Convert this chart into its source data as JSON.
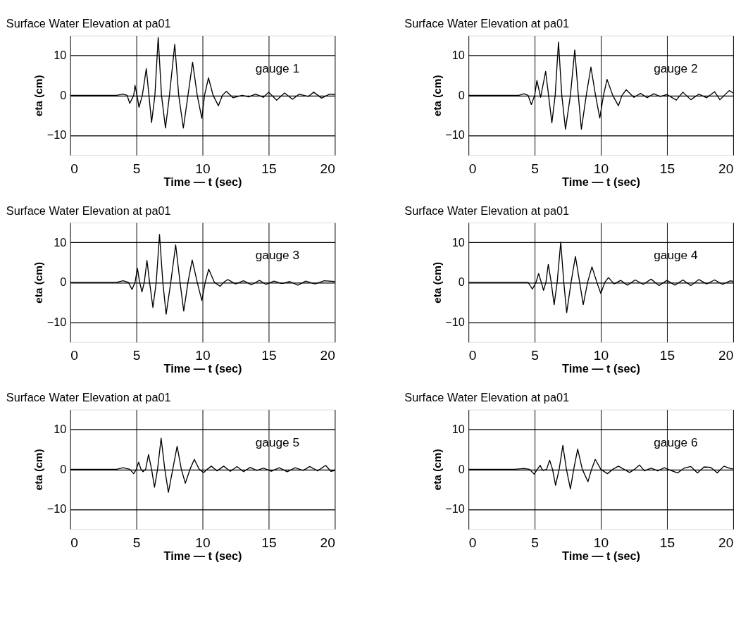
{
  "chart_data": [
    {
      "type": "line",
      "title": "Surface Water Elevation at pa01",
      "xlabel": "Time — t (sec)",
      "ylabel": "eta (cm)",
      "annotations": [
        "gauge   1"
      ],
      "color": "#000000",
      "xlim": [
        0,
        20
      ],
      "ylim": [
        -15,
        15
      ],
      "xticks": [
        0,
        5,
        10,
        15,
        20
      ],
      "yticks": [
        -10,
        0,
        10
      ],
      "grid": true,
      "x": [
        0,
        3.5,
        4.0,
        4.3,
        4.5,
        4.8,
        4.9,
        5.05,
        5.2,
        5.45,
        5.75,
        5.95,
        6.15,
        6.4,
        6.65,
        6.9,
        7.2,
        7.5,
        7.9,
        8.2,
        8.55,
        8.9,
        9.25,
        9.6,
        9.95,
        10.15,
        10.45,
        10.8,
        11.2,
        11.5,
        11.8,
        12.3,
        13,
        13.5,
        14,
        14.6,
        15,
        15.6,
        16.2,
        16.8,
        17.3,
        18,
        18.4,
        19.0,
        19.6,
        20
      ],
      "values": [
        0,
        0,
        0.3,
        0,
        -2,
        0,
        2.5,
        0,
        -3,
        0,
        6.7,
        0,
        -6.8,
        0,
        14.5,
        0,
        -8.2,
        0,
        12.8,
        0,
        -8.2,
        0,
        8.3,
        0,
        -5.8,
        0,
        4.4,
        0,
        -2.6,
        0,
        1.0,
        -0.6,
        0,
        -0.4,
        0.3,
        -0.5,
        0.8,
        -1.2,
        0.6,
        -1.0,
        0.3,
        -0.3,
        0.8,
        -0.7,
        0.3,
        0.2
      ]
    },
    {
      "type": "line",
      "title": "Surface Water Elevation at pa01",
      "xlabel": "Time — t (sec)",
      "ylabel": "eta (cm)",
      "annotations": [
        "gauge   2"
      ],
      "color": "#000000",
      "xlim": [
        0,
        20
      ],
      "ylim": [
        -15,
        15
      ],
      "xticks": [
        0,
        5,
        10,
        15,
        20
      ],
      "yticks": [
        -10,
        0,
        10
      ],
      "grid": true,
      "x": [
        0,
        3.8,
        4.2,
        4.5,
        4.75,
        5.0,
        5.17,
        5.45,
        5.83,
        6.05,
        6.3,
        6.55,
        6.8,
        7.05,
        7.33,
        7.7,
        8.03,
        8.3,
        8.53,
        8.9,
        9.25,
        9.6,
        9.92,
        10.2,
        10.47,
        10.9,
        11.33,
        11.6,
        11.92,
        12.5,
        13,
        13.5,
        14,
        14.5,
        15,
        15.7,
        16.2,
        16.8,
        17.4,
        18.0,
        18.6,
        19.0,
        19.7,
        20
      ],
      "values": [
        0,
        0,
        0.4,
        0,
        -2.3,
        0,
        3.7,
        -0.5,
        6,
        0,
        -6.9,
        0,
        13.4,
        0,
        -8.5,
        0,
        11.4,
        0,
        -8.5,
        0,
        7.1,
        0,
        -5.7,
        0,
        4,
        0,
        -2.6,
        0,
        1.4,
        -0.5,
        0.5,
        -0.6,
        0.4,
        -0.3,
        0.2,
        -1.2,
        0.8,
        -1.1,
        0.3,
        -0.6,
        0.9,
        -1.1,
        1.2,
        0.6
      ]
    },
    {
      "type": "line",
      "title": "Surface Water Elevation at pa01",
      "xlabel": "Time — t (sec)",
      "ylabel": "eta (cm)",
      "annotations": [
        "gauge   3"
      ],
      "color": "#000000",
      "xlim": [
        0,
        20
      ],
      "ylim": [
        -15,
        15
      ],
      "xticks": [
        0,
        5,
        10,
        15,
        20
      ],
      "yticks": [
        -10,
        0,
        10
      ],
      "grid": true,
      "x": [
        0,
        3.5,
        4.0,
        4.4,
        4.67,
        4.9,
        5.08,
        5.25,
        5.42,
        5.6,
        5.8,
        6.0,
        6.25,
        6.5,
        6.75,
        7.0,
        7.25,
        7.6,
        7.97,
        8.3,
        8.58,
        8.9,
        9.22,
        9.6,
        9.95,
        10.2,
        10.47,
        10.9,
        11.33,
        11.6,
        11.9,
        12.5,
        13.1,
        13.7,
        14.3,
        14.8,
        15.4,
        16,
        16.6,
        17.2,
        17.8,
        18.5,
        19.2,
        20
      ],
      "values": [
        0,
        0,
        0.4,
        0,
        -1.8,
        0,
        3.5,
        0,
        -2.4,
        0,
        5.5,
        0,
        -6.3,
        0,
        12,
        0,
        -8,
        0,
        9.4,
        0,
        -7.2,
        0,
        5.6,
        0,
        -4.6,
        0,
        3.3,
        0,
        -1,
        0,
        0.7,
        -0.4,
        0.4,
        -0.6,
        0.5,
        -0.5,
        0.3,
        -0.3,
        0.2,
        -0.7,
        0.3,
        -0.4,
        0.4,
        0.2
      ]
    },
    {
      "type": "line",
      "title": "Surface Water Elevation at pa01",
      "xlabel": "Time — t (sec)",
      "ylabel": "eta (cm)",
      "annotations": [
        "gauge   4"
      ],
      "color": "#000000",
      "xlim": [
        0,
        20
      ],
      "ylim": [
        -15,
        15
      ],
      "xticks": [
        0,
        5,
        10,
        15,
        20
      ],
      "yticks": [
        -10,
        0,
        10
      ],
      "grid": true,
      "x": [
        0,
        4.0,
        4.5,
        4.83,
        5.1,
        5.3,
        5.5,
        5.67,
        5.85,
        6.03,
        6.25,
        6.47,
        6.7,
        6.97,
        7.2,
        7.42,
        7.75,
        8.08,
        8.4,
        8.67,
        9.0,
        9.33,
        9.7,
        10.0,
        10.3,
        10.58,
        11.0,
        11.5,
        12.0,
        12.6,
        13.2,
        13.8,
        14.4,
        15.0,
        15.6,
        16.2,
        16.8,
        17.4,
        18.0,
        18.6,
        19.2,
        19.8,
        20
      ],
      "values": [
        0,
        0,
        0,
        -1.7,
        0,
        2.2,
        0,
        -2,
        0,
        4.5,
        0,
        -5.6,
        0,
        10.1,
        0,
        -7.6,
        0,
        6.5,
        0,
        -5.6,
        0,
        3.9,
        0,
        -2.8,
        0,
        1.2,
        -0.4,
        0.5,
        -0.7,
        0.6,
        -0.5,
        0.8,
        -0.8,
        0.5,
        -0.7,
        0.6,
        -0.8,
        0.7,
        -0.4,
        0.6,
        -0.5,
        0.4,
        0.2
      ]
    },
    {
      "type": "line",
      "title": "Surface Water Elevation at pa01",
      "xlabel": "Time — t (sec)",
      "ylabel": "eta (cm)",
      "annotations": [
        "gauge   5"
      ],
      "color": "#000000",
      "xlim": [
        0,
        20
      ],
      "ylim": [
        -15,
        15
      ],
      "xticks": [
        0,
        5,
        10,
        15,
        20
      ],
      "yticks": [
        -10,
        0,
        10
      ],
      "grid": true,
      "x": [
        0,
        3.5,
        4.0,
        4.5,
        4.8,
        5.0,
        5.17,
        5.35,
        5.5,
        5.7,
        5.92,
        6.15,
        6.37,
        6.6,
        6.87,
        7.15,
        7.42,
        7.75,
        8.08,
        8.4,
        8.7,
        9.05,
        9.38,
        9.75,
        10.08,
        10.35,
        10.67,
        11.1,
        11.6,
        12.1,
        12.6,
        13.1,
        13.6,
        14.1,
        14.6,
        15.2,
        15.8,
        16.4,
        17.0,
        17.6,
        18.1,
        18.7,
        19.3,
        19.7,
        20
      ],
      "values": [
        0,
        0,
        0.4,
        0,
        -1.1,
        0,
        1.8,
        0,
        -0.6,
        0,
        3.7,
        0,
        -4.5,
        0,
        7.8,
        0,
        -5.8,
        0,
        5.8,
        0,
        -3.5,
        0,
        2.5,
        0,
        -0.8,
        0,
        0.8,
        -0.4,
        0.8,
        -0.5,
        0.7,
        -0.6,
        0.5,
        -0.3,
        0.3,
        -0.5,
        0.4,
        -0.6,
        0.4,
        -0.3,
        0.7,
        -0.4,
        1.0,
        -0.5,
        -0.3
      ]
    },
    {
      "type": "line",
      "title": "Surface Water Elevation at pa01",
      "xlabel": "Time — t (sec)",
      "ylabel": "eta (cm)",
      "annotations": [
        "gauge   6"
      ],
      "color": "#000000",
      "xlim": [
        0,
        20
      ],
      "ylim": [
        -15,
        15
      ],
      "xticks": [
        0,
        5,
        10,
        15,
        20
      ],
      "yticks": [
        -10,
        0,
        10
      ],
      "grid": true,
      "x": [
        0,
        3.5,
        4.2,
        4.6,
        4.97,
        5.2,
        5.42,
        5.55,
        5.67,
        5.9,
        6.13,
        6.35,
        6.58,
        6.85,
        7.13,
        7.4,
        7.7,
        7.95,
        8.25,
        8.6,
        9.03,
        9.3,
        9.58,
        10.0,
        10.5,
        10.9,
        11.33,
        11.75,
        12.17,
        12.55,
        12.92,
        13.3,
        13.8,
        14.3,
        14.8,
        15.3,
        15.8,
        16.3,
        16.8,
        17.3,
        17.8,
        18.3,
        18.8,
        19.3,
        19.8,
        20
      ],
      "values": [
        0,
        0,
        0.2,
        0,
        -1.2,
        0,
        1,
        0,
        -0.3,
        0,
        2.3,
        0,
        -4,
        0,
        6,
        0,
        -4.9,
        0,
        5.1,
        0,
        -3.1,
        0,
        2.5,
        0,
        -1.1,
        0,
        0.8,
        0,
        -0.8,
        0,
        1.1,
        -0.4,
        0.3,
        -0.4,
        0.4,
        -0.3,
        -0.9,
        0.3,
        0.7,
        -0.9,
        0.6,
        0.5,
        -0.9,
        0.8,
        0.2,
        0.1
      ]
    }
  ]
}
